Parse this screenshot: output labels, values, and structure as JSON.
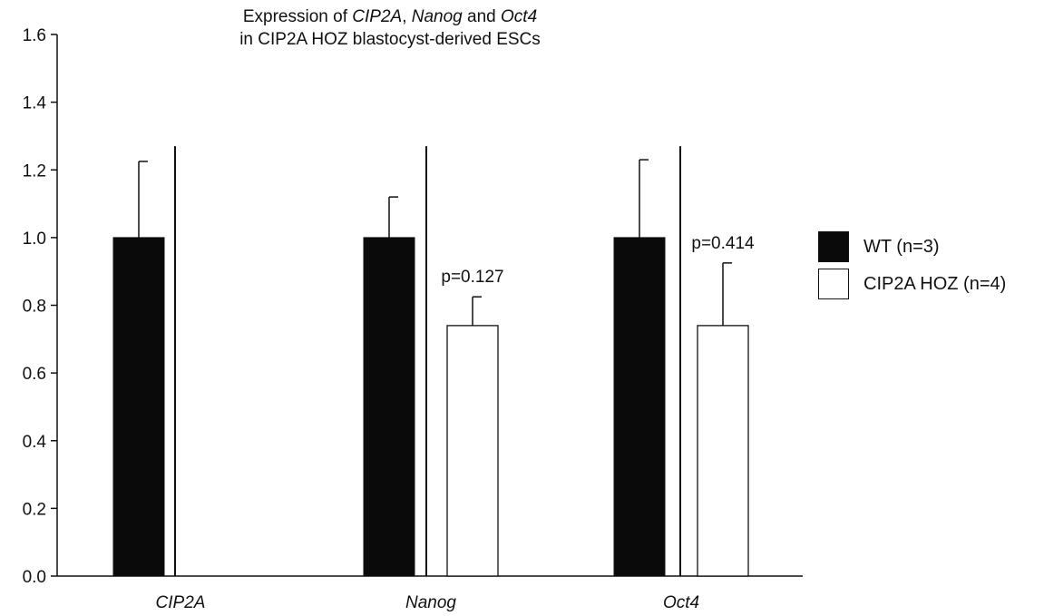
{
  "title_parts": {
    "prefix": "Expression of ",
    "gene1": "CIP2A",
    "sep1": ", ",
    "gene2": "Nanog",
    "sep2": " and ",
    "gene3": "Oct4",
    "line2": "in CIP2A HOZ blastocyst-derived ESCs"
  },
  "legend": [
    {
      "label": "WT (n=3)",
      "color": "#0a0a0a"
    },
    {
      "label": "CIP2A HOZ (n=4)",
      "color": "#ffffff"
    }
  ],
  "chart_data": {
    "type": "bar",
    "title": "Expression of CIP2A, Nanog and Oct4 in CIP2A HOZ blastocyst-derived ESCs",
    "categories": [
      "CIP2A",
      "Nanog",
      "Oct4"
    ],
    "series": [
      {
        "name": "WT (n=3)",
        "values": [
          1.0,
          1.0,
          1.0
        ],
        "error": [
          0.225,
          0.12,
          0.23
        ],
        "color": "#0a0a0a"
      },
      {
        "name": "CIP2A HOZ (n=4)",
        "values": [
          null,
          0.74,
          0.74
        ],
        "error": [
          null,
          0.085,
          0.185
        ],
        "color": "#ffffff"
      }
    ],
    "annotations": [
      null,
      "p=0.127",
      "p=0.414"
    ],
    "ylim": [
      0,
      1.6
    ],
    "yticks": [
      "0.0",
      "0.2",
      "0.4",
      "0.6",
      "0.8",
      "1.0",
      "1.2",
      "1.4",
      "1.6"
    ],
    "xlabel": "",
    "ylabel": "",
    "grid": false,
    "legend_position": "right"
  }
}
